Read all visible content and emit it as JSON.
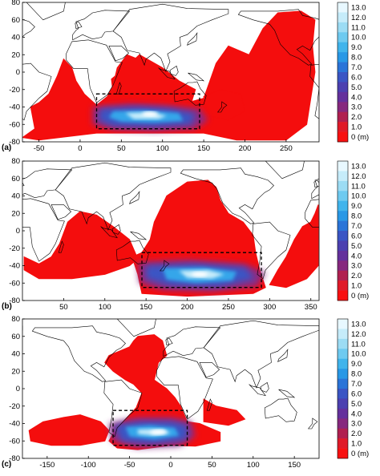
{
  "caption_fragment": "",
  "colorbar": {
    "unit_label": "0 (m)",
    "levels": [
      "13.0",
      "12.0",
      "11.0",
      "10.0",
      "9.0",
      "8.0",
      "7.0",
      "6.0",
      "5.0",
      "4.0",
      "3.0",
      "2.0",
      "1.0",
      "0 (m)"
    ],
    "colors": [
      "#e8f8ff",
      "#c6ecfa",
      "#9cdcf4",
      "#6ecaf0",
      "#40b4ec",
      "#2898e6",
      "#2a74d8",
      "#3a55c4",
      "#4c40b0",
      "#64309c",
      "#86287e",
      "#b02050",
      "#e01a28",
      "#f81010"
    ]
  },
  "chart_data": [
    {
      "type": "heatmap",
      "panel_label": "(a)",
      "xlim": [
        -70,
        290
      ],
      "ylim": [
        -80,
        80
      ],
      "xticks": [
        -50,
        0,
        50,
        100,
        150,
        200,
        250
      ],
      "yticks": [
        80,
        60,
        40,
        20,
        0,
        -20,
        -40,
        -60,
        -80
      ],
      "source_box": {
        "lon": [
          20,
          145
        ],
        "lat": [
          -65,
          -25
        ]
      },
      "hot_spot": {
        "lon": 85,
        "lat": -48,
        "max_m": 12
      }
    },
    {
      "type": "heatmap",
      "panel_label": "(b)",
      "xlim": [
        0,
        360
      ],
      "ylim": [
        -80,
        80
      ],
      "xticks": [
        50,
        100,
        150,
        200,
        250,
        300,
        350
      ],
      "yticks": [
        80,
        60,
        40,
        20,
        0,
        -20,
        -40,
        -60,
        -80
      ],
      "source_box": {
        "lon": [
          145,
          290
        ],
        "lat": [
          -65,
          -25
        ]
      },
      "hot_spot": {
        "lon": 215,
        "lat": -50,
        "max_m": 12
      }
    },
    {
      "type": "heatmap",
      "panel_label": "(c)",
      "xlim": [
        -180,
        180
      ],
      "ylim": [
        -80,
        80
      ],
      "xticks": [
        -150,
        -100,
        -50,
        0,
        50,
        100,
        150
      ],
      "yticks": [
        80,
        60,
        40,
        20,
        0,
        -20,
        -40,
        -60,
        -80
      ],
      "source_box": {
        "lon": [
          -70,
          20
        ],
        "lat": [
          -65,
          -25
        ]
      },
      "hot_spot": {
        "lon": -15,
        "lat": -50,
        "max_m": 12
      }
    }
  ]
}
